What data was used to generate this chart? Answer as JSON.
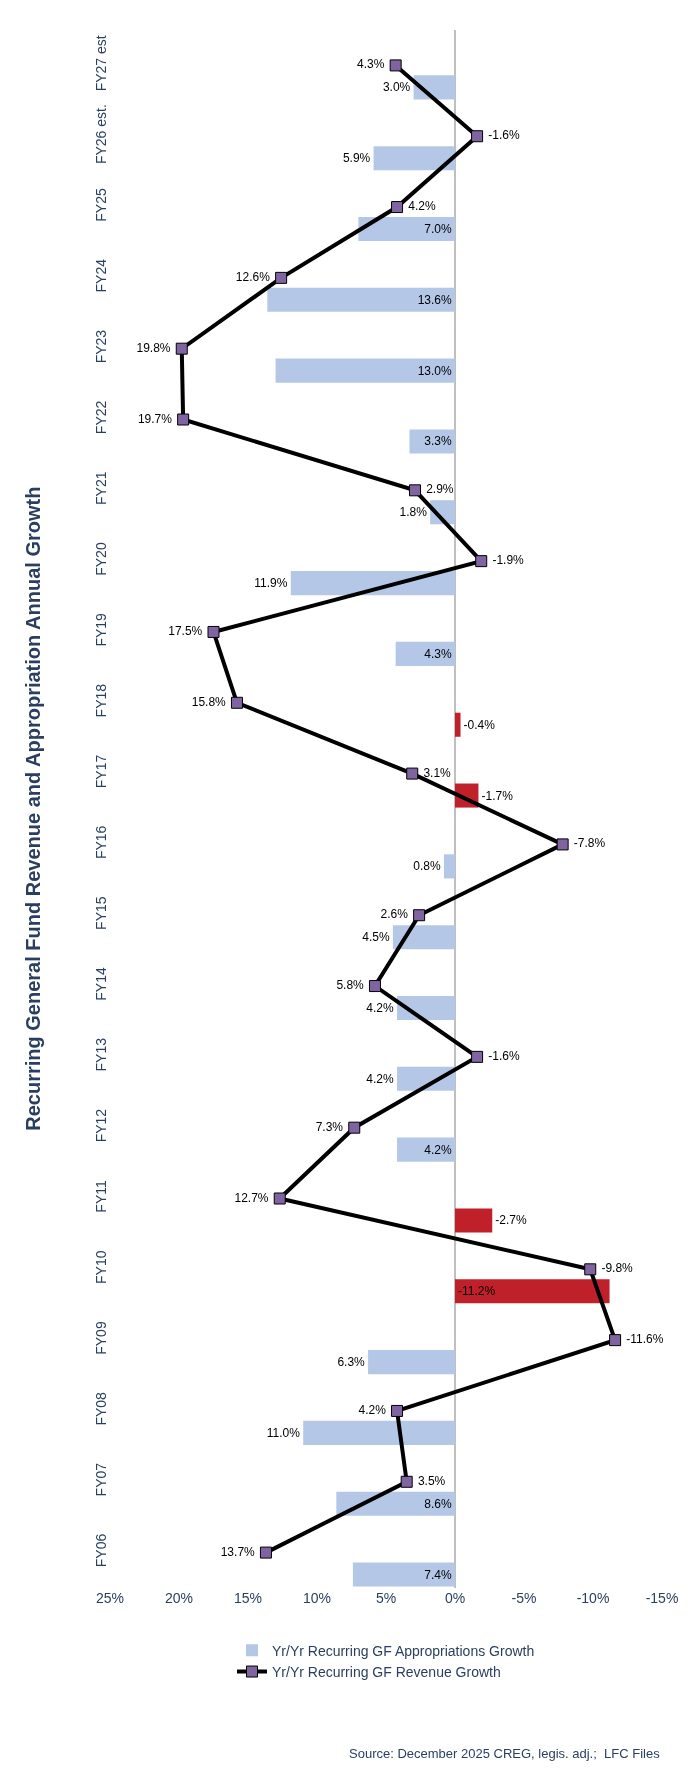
{
  "chart_data": {
    "type": "bar",
    "orientation": "horizontal",
    "title": "Recurring General Fund Revenue and Appropriation Annual Growth",
    "categories": [
      "FY27 est",
      "FY26 est.",
      "FY25",
      "FY24",
      "FY23",
      "FY22",
      "FY21",
      "FY20",
      "FY19",
      "FY18",
      "FY17",
      "FY16",
      "FY15",
      "FY14",
      "FY13",
      "FY12",
      "FY11",
      "FY10",
      "FY09",
      "FY08",
      "FY07",
      "FY06"
    ],
    "series": [
      {
        "name": "Yr/Yr Recurring GF Appropriations Growth",
        "color": "#b4c7e7",
        "colors": [
          "#b4c7e7",
          "#b4c7e7",
          "#b4c7e7",
          "#b4c7e7",
          "#b4c7e7",
          "#b4c7e7",
          "#b4c7e7",
          "#b4c7e7",
          "#b4c7e7",
          "#c0202a",
          "#c0202a",
          "#b4c7e7",
          "#b4c7e7",
          "#b4c7e7",
          "#b4c7e7",
          "#b4c7e7",
          "#c0202a",
          "#c0202a",
          "#b4c7e7",
          "#b4c7e7",
          "#b4c7e7",
          "#b4c7e7"
        ],
        "values": [
          3.0,
          5.9,
          7.0,
          13.6,
          13.0,
          3.3,
          1.8,
          11.9,
          4.3,
          -0.4,
          -1.7,
          0.8,
          4.5,
          4.2,
          4.2,
          4.2,
          -2.7,
          -11.2,
          6.3,
          11.0,
          8.6,
          7.4
        ],
        "value_labels": [
          "3.0%",
          "5.9%",
          "7.0%",
          "13.6%",
          "13.0%",
          "3.3%",
          "1.8%",
          "11.9%",
          "4.3%",
          "-0.4%",
          "-1.7%",
          "0.8%",
          "4.5%",
          "4.2%",
          "4.2%",
          "4.2%",
          "-2.7%",
          "-11.2%",
          "6.3%",
          "11.0%",
          "8.6%",
          "7.4%"
        ]
      },
      {
        "name": "Yr/Yr Recurring GF Revenue Growth",
        "type": "line",
        "color": "#000000",
        "colors": [
          "#8064a2",
          "#8064a2",
          "#8064a2",
          "#8064a2",
          "#8064a2",
          "#8064a2",
          "#8064a2",
          "#8064a2",
          "#8064a2",
          "#8064a2",
          "#8064a2",
          "#8064a2",
          "#8064a2",
          "#8064a2",
          "#8064a2",
          "#8064a2",
          "#8064a2",
          "#8064a2",
          "#8064a2",
          "#8064a2",
          "#8064a2",
          "#8064a2"
        ],
        "values": [
          4.3,
          -1.6,
          4.2,
          12.6,
          19.8,
          19.7,
          2.9,
          -1.9,
          17.5,
          15.8,
          3.1,
          -7.8,
          2.6,
          5.8,
          -1.6,
          7.3,
          12.7,
          -9.8,
          -11.6,
          4.2,
          3.5,
          13.7
        ],
        "value_labels": [
          "4.3%",
          "-1.6%",
          "4.2%",
          "12.6%",
          "19.8%",
          "19.7%",
          "2.9%",
          "-1.9%",
          "17.5%",
          "15.8%",
          "3.1%",
          "-7.8%",
          "2.6%",
          "5.8%",
          "-1.6%",
          "7.3%",
          "12.7%",
          "-9.8%",
          "-11.6%",
          "4.2%",
          "3.5%",
          "13.7%"
        ]
      }
    ],
    "xlim": [
      25,
      -15
    ],
    "xticks": [
      {
        "value": 25,
        "label": "25%"
      },
      {
        "value": 20,
        "label": "20%"
      },
      {
        "value": 15,
        "label": "15%"
      },
      {
        "value": 10,
        "label": "10%"
      },
      {
        "value": 5,
        "label": "5%"
      },
      {
        "value": 0,
        "label": "0%"
      },
      {
        "value": -5,
        "label": "-5%"
      },
      {
        "value": -10,
        "label": "-10%"
      },
      {
        "value": -15,
        "label": "-15%"
      }
    ],
    "ref_lines": [
      {
        "axis": "x",
        "value": 0,
        "color": "#bfbfbf"
      }
    ],
    "marker": "square",
    "line_style": "solid",
    "grid": false,
    "legend": "bottom",
    "annotations": [
      "Source: December 2025 CREG, legis. adj.;  LFC Files"
    ]
  }
}
